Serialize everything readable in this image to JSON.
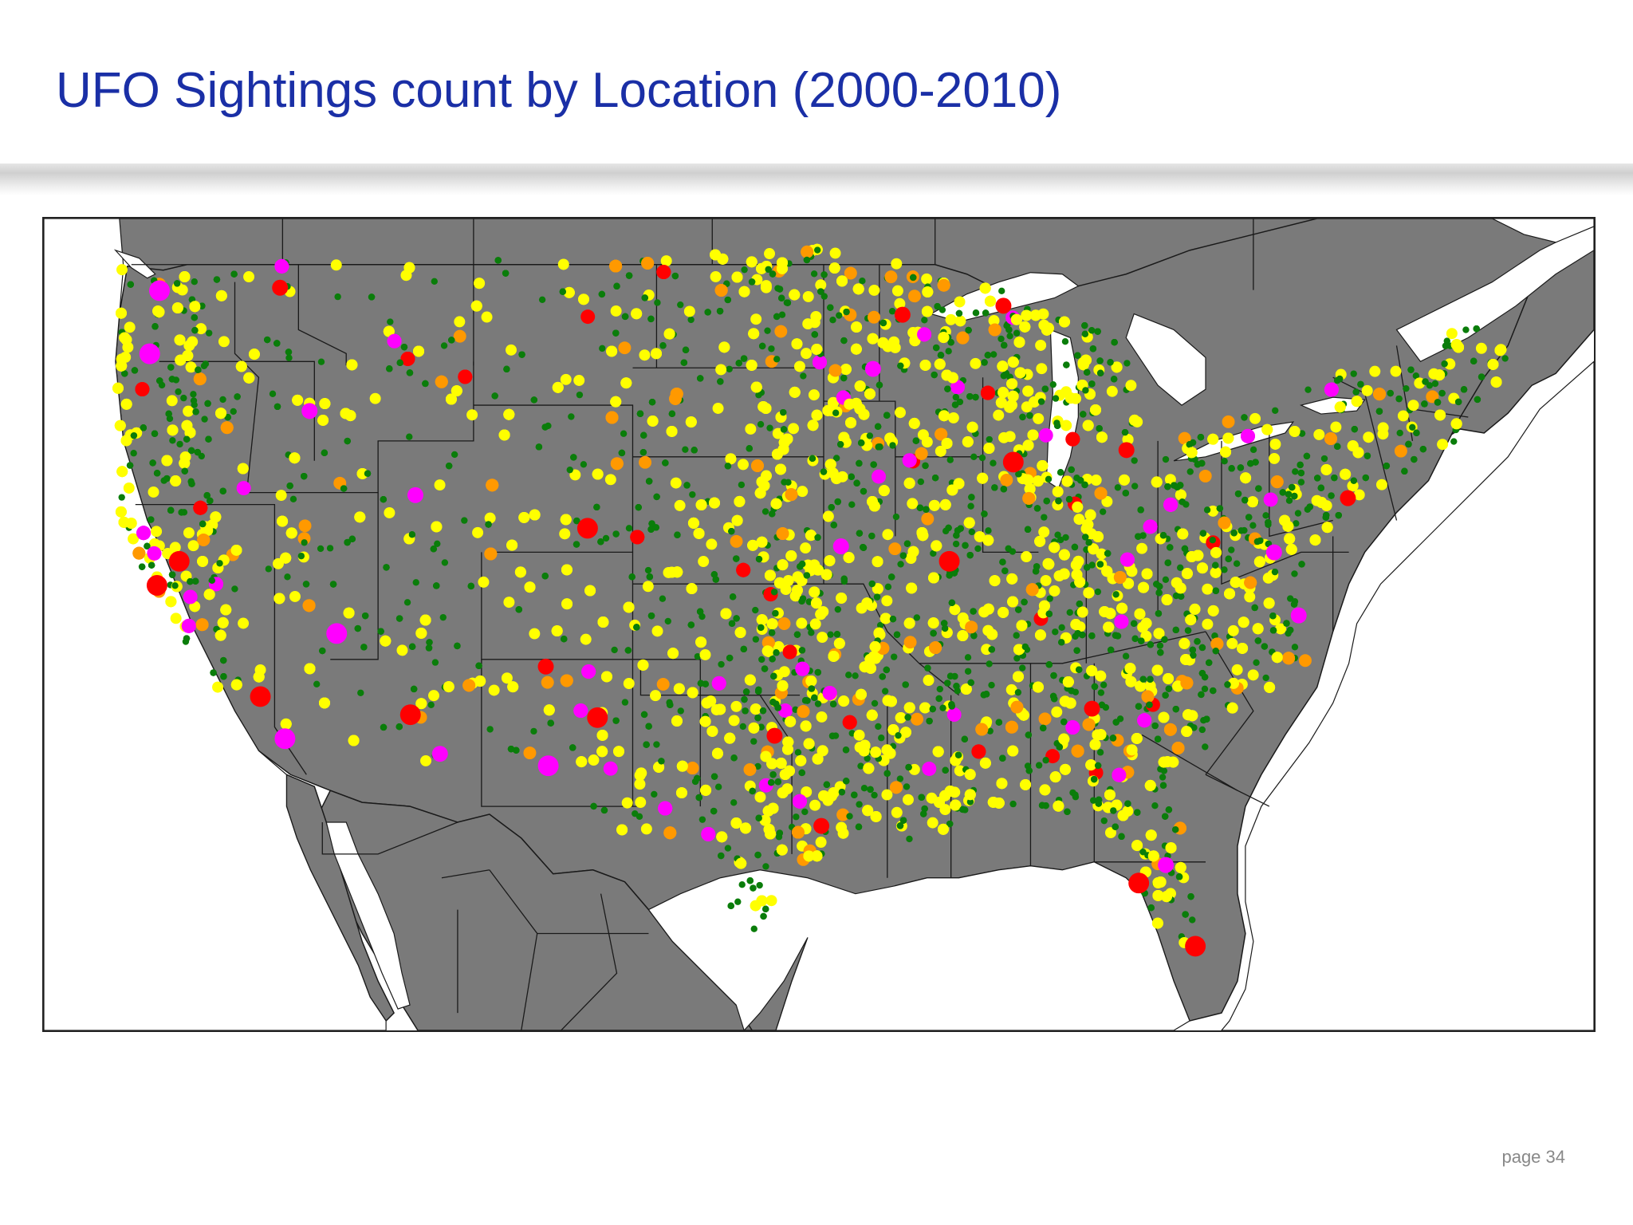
{
  "slide": {
    "title": "UFO Sightings count by Location (2000-2010)",
    "page_label": "page 34"
  },
  "map": {
    "region": "Contiguous United States with parts of Canada and Mexico",
    "colors": {
      "land": "#7a7a7a",
      "water": "#ffffff",
      "border": "#1a1a1a",
      "frame": "#222222"
    },
    "marker_colors": {
      "lowest": "#0a7d0a",
      "low": "#ffff00",
      "medium": "#ff9900",
      "high": "#ff00ff",
      "highest": "#ff0000"
    },
    "hotspots": [
      {
        "lon": -122.3,
        "lat": 47.6,
        "color": "#ff00ff",
        "size": "large"
      },
      {
        "lon": -122.7,
        "lat": 45.5,
        "color": "#ff00ff",
        "size": "large"
      },
      {
        "lon": -122.4,
        "lat": 37.8,
        "color": "#ff0000",
        "size": "large"
      },
      {
        "lon": -121.5,
        "lat": 38.6,
        "color": "#ff0000",
        "size": "large"
      },
      {
        "lon": -118.2,
        "lat": 34.1,
        "color": "#ff0000",
        "size": "large"
      },
      {
        "lon": -117.2,
        "lat": 32.7,
        "color": "#ff00ff",
        "size": "large"
      },
      {
        "lon": -115.1,
        "lat": 36.2,
        "color": "#ff00ff",
        "size": "large"
      },
      {
        "lon": -112.1,
        "lat": 33.5,
        "color": "#ff0000",
        "size": "large"
      },
      {
        "lon": -110.9,
        "lat": 32.2,
        "color": "#ff00ff",
        "size": "medium"
      },
      {
        "lon": -104.9,
        "lat": 39.7,
        "color": "#ff0000",
        "size": "large"
      },
      {
        "lon": -106.6,
        "lat": 35.1,
        "color": "#ff0000",
        "size": "medium"
      },
      {
        "lon": -106.5,
        "lat": 31.8,
        "color": "#ff00ff",
        "size": "large"
      },
      {
        "lon": -104.5,
        "lat": 33.4,
        "color": "#ff0000",
        "size": "large"
      },
      {
        "lon": -111.9,
        "lat": 40.8,
        "color": "#ff00ff",
        "size": "medium"
      },
      {
        "lon": -116.2,
        "lat": 43.6,
        "color": "#ff00ff",
        "size": "medium"
      },
      {
        "lon": -117.4,
        "lat": 47.7,
        "color": "#ff0000",
        "size": "medium"
      },
      {
        "lon": -93.3,
        "lat": 45.0,
        "color": "#ff00ff",
        "size": "medium"
      },
      {
        "lon": -87.6,
        "lat": 41.9,
        "color": "#ff0000",
        "size": "large"
      },
      {
        "lon": -90.2,
        "lat": 38.6,
        "color": "#ff0000",
        "size": "large"
      },
      {
        "lon": -94.6,
        "lat": 39.1,
        "color": "#ff00ff",
        "size": "medium"
      },
      {
        "lon": -97.3,
        "lat": 32.8,
        "color": "#ff0000",
        "size": "medium"
      },
      {
        "lon": -95.4,
        "lat": 29.8,
        "color": "#ff0000",
        "size": "medium"
      },
      {
        "lon": -84.4,
        "lat": 33.7,
        "color": "#ff0000",
        "size": "medium"
      },
      {
        "lon": -80.2,
        "lat": 25.8,
        "color": "#ff0000",
        "size": "large"
      },
      {
        "lon": -81.4,
        "lat": 28.5,
        "color": "#ff00ff",
        "size": "medium"
      },
      {
        "lon": -82.5,
        "lat": 27.9,
        "color": "#ff0000",
        "size": "large"
      },
      {
        "lon": -77.0,
        "lat": 38.9,
        "color": "#ff00ff",
        "size": "medium"
      },
      {
        "lon": -76.0,
        "lat": 36.8,
        "color": "#ff00ff",
        "size": "medium"
      },
      {
        "lon": -74.0,
        "lat": 40.7,
        "color": "#ff0000",
        "size": "medium"
      },
      {
        "lon": -83.0,
        "lat": 42.3,
        "color": "#ff0000",
        "size": "medium"
      },
      {
        "lon": -88.0,
        "lat": 47.1,
        "color": "#ff0000",
        "size": "medium"
      },
      {
        "lon": -92.1,
        "lat": 46.8,
        "color": "#ff0000",
        "size": "medium"
      }
    ]
  }
}
